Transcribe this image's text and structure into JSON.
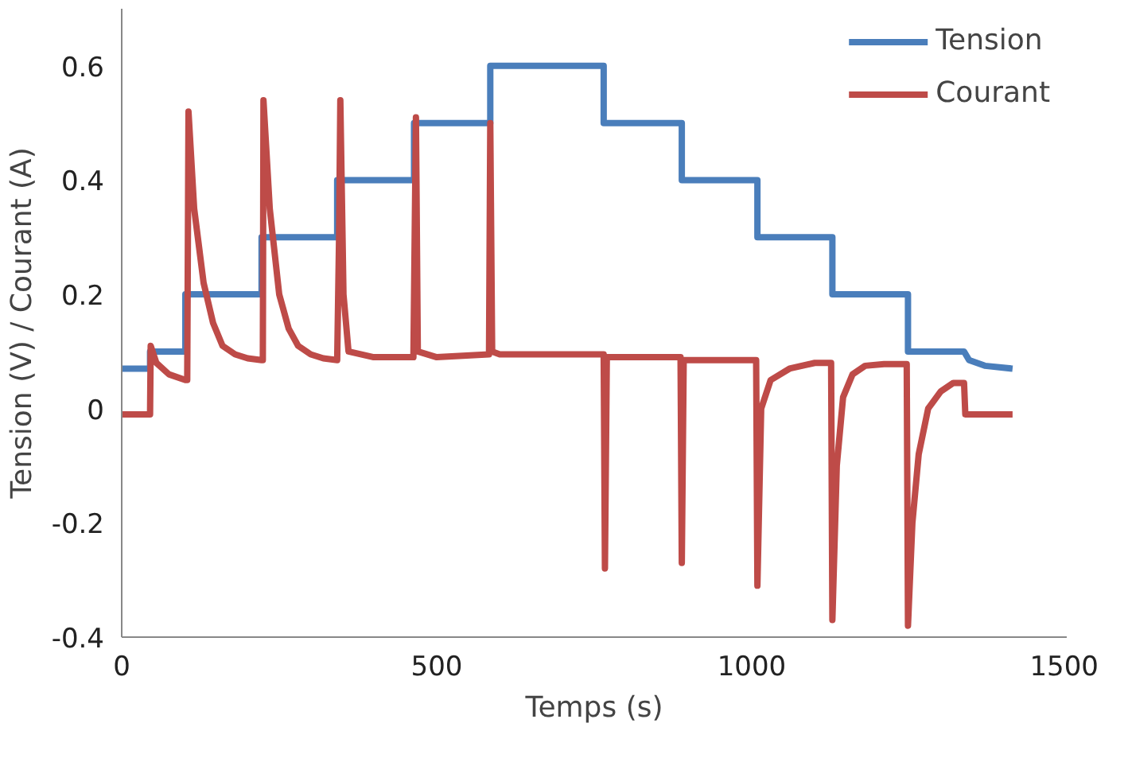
{
  "chart_data": {
    "type": "line",
    "xlabel": "Temps (s)",
    "ylabel": "Tension (V) / Courant (A)",
    "xlim": [
      0,
      1500
    ],
    "xticks": [
      0,
      500,
      1000,
      1500
    ],
    "ylim": [
      -0.4,
      0.7
    ],
    "yticks": [
      -0.4,
      -0.2,
      0,
      0.2,
      0.4,
      0.6
    ],
    "grid": false,
    "legend": "top right",
    "marker": "none",
    "line_style": "solid",
    "series": [
      {
        "name": "Tension",
        "color": "#4a7ebb",
        "x": [
          0,
          45,
          45,
          101,
          101,
          222,
          222,
          342,
          342,
          464,
          464,
          585,
          585,
          765,
          765,
          889,
          889,
          1009,
          1009,
          1128,
          1128,
          1248,
          1248,
          1337,
          1345,
          1370,
          1414
        ],
        "values": [
          0.07,
          0.07,
          0.1,
          0.1,
          0.2,
          0.2,
          0.3,
          0.3,
          0.4,
          0.4,
          0.5,
          0.5,
          0.6,
          0.6,
          0.5,
          0.5,
          0.4,
          0.4,
          0.3,
          0.3,
          0.2,
          0.2,
          0.1,
          0.1,
          0.085,
          0.075,
          0.07
        ]
      },
      {
        "name": "Courant",
        "color": "#be4b48",
        "x": [
          0,
          45,
          46,
          55,
          75,
          101,
          104,
          106,
          115,
          130,
          145,
          160,
          180,
          200,
          222,
          224,
          225,
          235,
          250,
          265,
          280,
          300,
          320,
          342,
          345,
          347,
          352,
          360,
          400,
          463,
          465,
          467,
          470,
          500,
          583,
          585,
          588,
          600,
          700,
          765,
          767,
          770,
          800,
          887,
          889,
          892,
          950,
          1007,
          1009,
          1015,
          1030,
          1060,
          1100,
          1126,
          1128,
          1135,
          1145,
          1160,
          1180,
          1210,
          1246,
          1248,
          1255,
          1265,
          1280,
          1300,
          1320,
          1337,
          1339,
          1345,
          1414
        ],
        "values": [
          -0.01,
          -0.01,
          0.11,
          0.08,
          0.06,
          0.05,
          0.05,
          0.52,
          0.35,
          0.22,
          0.15,
          0.11,
          0.095,
          0.088,
          0.085,
          0.085,
          0.54,
          0.35,
          0.2,
          0.14,
          0.11,
          0.095,
          0.088,
          0.085,
          0.3,
          0.54,
          0.2,
          0.1,
          0.09,
          0.09,
          0.3,
          0.51,
          0.1,
          0.09,
          0.095,
          0.5,
          0.1,
          0.095,
          0.095,
          0.095,
          -0.28,
          0.09,
          0.09,
          0.09,
          -0.27,
          0.085,
          0.085,
          0.085,
          -0.31,
          0.0,
          0.05,
          0.07,
          0.08,
          0.08,
          -0.37,
          -0.1,
          0.02,
          0.06,
          0.075,
          0.078,
          0.078,
          -0.38,
          -0.2,
          -0.08,
          0.0,
          0.03,
          0.045,
          0.045,
          -0.01,
          -0.01,
          -0.01
        ]
      }
    ]
  }
}
